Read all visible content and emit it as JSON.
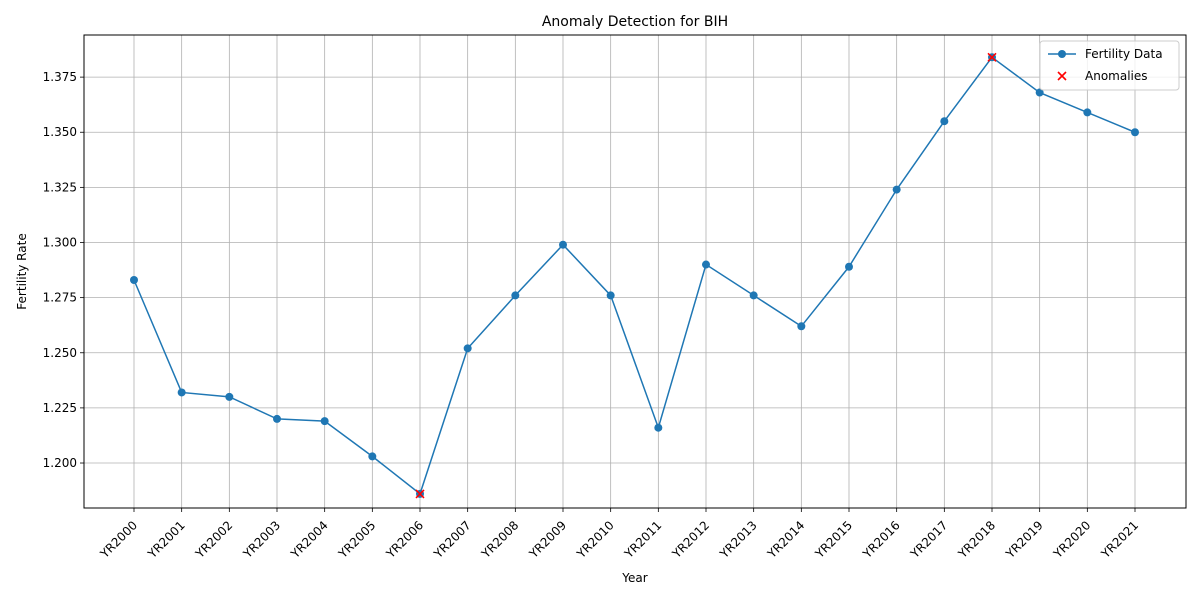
{
  "chart_data": {
    "type": "line",
    "title": "Anomaly Detection for BIH",
    "xlabel": "Year",
    "ylabel": "Fertility Rate",
    "categories": [
      "YR2000",
      "YR2001",
      "YR2002",
      "YR2003",
      "YR2004",
      "YR2005",
      "YR2006",
      "YR2007",
      "YR2008",
      "YR2009",
      "YR2010",
      "YR2011",
      "YR2012",
      "YR2013",
      "YR2014",
      "YR2015",
      "YR2016",
      "YR2017",
      "YR2018",
      "YR2019",
      "YR2020",
      "YR2021"
    ],
    "series": [
      {
        "name": "Fertility Data",
        "color": "#1f77b4",
        "values": [
          1.283,
          1.232,
          1.23,
          1.22,
          1.219,
          1.203,
          1.186,
          1.252,
          1.276,
          1.299,
          1.276,
          1.216,
          1.29,
          1.276,
          1.262,
          1.289,
          1.324,
          1.355,
          1.384,
          1.368,
          1.359,
          1.35
        ]
      },
      {
        "name": "Anomalies",
        "color": "#ff0000",
        "marker": "x",
        "points": [
          {
            "x": "YR2006",
            "y": 1.186
          },
          {
            "x": "YR2018",
            "y": 1.384
          }
        ]
      }
    ],
    "ylim": [
      1.1796,
      1.3941
    ],
    "yticks": [
      "1.200",
      "1.225",
      "1.250",
      "1.275",
      "1.300",
      "1.325",
      "1.350",
      "1.375"
    ],
    "grid": true,
    "legend": "upper right"
  }
}
